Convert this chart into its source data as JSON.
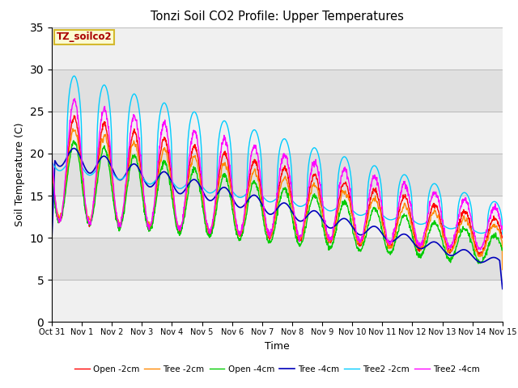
{
  "title": "Tonzi Soil CO2 Profile: Upper Temperatures",
  "xlabel": "Time",
  "ylabel": "Soil Temperature (C)",
  "ylim": [
    0,
    35
  ],
  "xlim": [
    0,
    15
  ],
  "xtick_labels": [
    "Oct 31",
    "Nov 1",
    "Nov 2",
    "Nov 3",
    "Nov 4",
    "Nov 5",
    "Nov 6",
    "Nov 7",
    "Nov 8",
    "Nov 9",
    "Nov 10",
    "Nov 11",
    "Nov 12",
    "Nov 13",
    "Nov 14",
    "Nov 15"
  ],
  "ytick_values": [
    0,
    5,
    10,
    15,
    20,
    25,
    30,
    35
  ],
  "legend_title": "TZ_soilco2",
  "legend_title_color": "#aa0000",
  "legend_title_bg": "#ffffcc",
  "legend_border_color": "#ccaa00",
  "series": [
    {
      "label": "Open -2cm",
      "color": "#ff0000"
    },
    {
      "label": "Tree -2cm",
      "color": "#ff8800"
    },
    {
      "label": "Open -4cm",
      "color": "#00cc00"
    },
    {
      "label": "Tree -4cm",
      "color": "#0000bb"
    },
    {
      "label": "Tree2 -2cm",
      "color": "#00ccff"
    },
    {
      "label": "Tree2 -4cm",
      "color": "#ff00ff"
    }
  ],
  "bg_band_color": "#e0e0e0",
  "plot_bg_color": "#f0f0f0",
  "grid_color": "#bbbbbb",
  "fig_width": 6.4,
  "fig_height": 4.8,
  "dpi": 100
}
